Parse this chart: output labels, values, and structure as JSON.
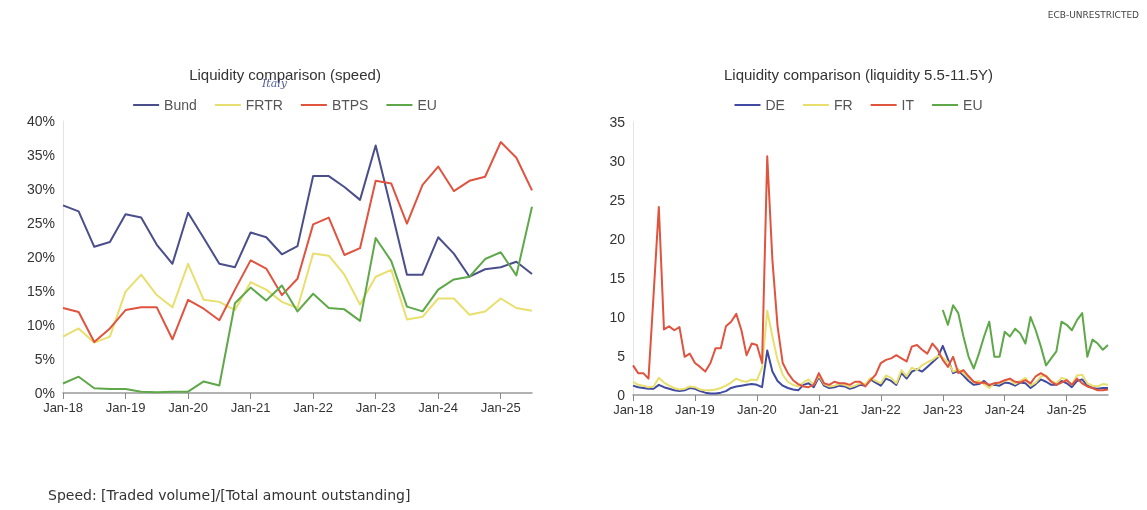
{
  "chart_data": [
    {
      "type": "line",
      "title": "Liquidity comparison (speed)",
      "categories": [
        "Jan-18",
        null,
        null,
        null,
        "Jan-19",
        null,
        null,
        null,
        "Jan-20",
        null,
        null,
        null,
        "Jan-21",
        null,
        null,
        null,
        "Jan-22",
        null,
        null,
        null,
        "Jan-23",
        null,
        null,
        null,
        "Jan-24",
        null,
        null,
        null,
        "Jan-25",
        null,
        null
      ],
      "series": [
        {
          "name": "Bund",
          "color": "#4a4e8a",
          "values": [
            27.6,
            26.7,
            21.5,
            22.2,
            26.3,
            25.8,
            21.8,
            19,
            26.5,
            22.8,
            19,
            18.5,
            23.6,
            22.9,
            20.4,
            21.6,
            31.9,
            31.9,
            30.3,
            28.4,
            36.4,
            27,
            17.4,
            17.4,
            22.9,
            20.5,
            17.1,
            18.2,
            18.5,
            19.3,
            17.5
          ]
        },
        {
          "name": "FRTR",
          "color": "#e8df6e",
          "values": [
            8.3,
            9.5,
            7.4,
            8.3,
            14.9,
            17.4,
            14.4,
            12.6,
            19,
            13.7,
            13.4,
            12.2,
            16.3,
            15.2,
            13.4,
            12.5,
            20.5,
            20.2,
            17.4,
            13,
            17.1,
            18.1,
            10.8,
            11.2,
            13.9,
            13.9,
            11.5,
            12,
            13.9,
            12.5,
            12.1
          ]
        },
        {
          "name": "BTPS",
          "color": "#e0533f",
          "values": [
            12.5,
            11.9,
            7.5,
            9.5,
            12.2,
            12.6,
            12.6,
            7.9,
            13.7,
            12.4,
            10.7,
            15.2,
            19.5,
            18.3,
            14.4,
            16.8,
            24.8,
            25.8,
            20.3,
            21.3,
            31.2,
            30.8,
            24.9,
            30.6,
            33.3,
            29.7,
            31.2,
            31.8,
            36.9,
            34.6,
            29.8
          ]
        },
        {
          "name": "EU",
          "color": "#5fa84a",
          "values": [
            1.4,
            2.4,
            0.7,
            0.6,
            0.6,
            0.2,
            0.1,
            0.2,
            0.2,
            1.7,
            1.1,
            13.2,
            15.5,
            13.6,
            15.8,
            12,
            14.6,
            12.5,
            12.3,
            10.6,
            22.8,
            19.4,
            12.7,
            12,
            15.2,
            16.7,
            17.1,
            19.7,
            20.7,
            17.3,
            27.4
          ]
        }
      ],
      "ylim": [
        0,
        40
      ],
      "yticks": [
        {
          "value": 0,
          "label": "0%"
        },
        {
          "value": 5,
          "label": "5%"
        },
        {
          "value": 10,
          "label": "10%"
        },
        {
          "value": 15,
          "label": "15%"
        },
        {
          "value": 20,
          "label": "20%"
        },
        {
          "value": 25,
          "label": "25%"
        },
        {
          "value": 30,
          "label": "30%"
        },
        {
          "value": 35,
          "label": "35%"
        },
        {
          "value": 40,
          "label": "40%"
        }
      ],
      "legend": "top",
      "grid": false,
      "marker": "none",
      "line_style": "solid",
      "annotations": [
        "Italy",
        "Speed: [Traded volume]/[Total amount outstanding]"
      ]
    },
    {
      "type": "line",
      "title": "Liquidity comparison (liquidity 5.5-11.5Y)",
      "categories": [
        "Jan-18",
        null,
        null,
        null,
        null,
        null,
        null,
        null,
        null,
        null,
        null,
        null,
        "Jan-19",
        null,
        null,
        null,
        null,
        null,
        null,
        null,
        null,
        null,
        null,
        null,
        "Jan-20",
        null,
        null,
        null,
        null,
        null,
        null,
        null,
        null,
        null,
        null,
        null,
        "Jan-21",
        null,
        null,
        null,
        null,
        null,
        null,
        null,
        null,
        null,
        null,
        null,
        "Jan-22",
        null,
        null,
        null,
        null,
        null,
        null,
        null,
        null,
        null,
        null,
        null,
        "Jan-23",
        null,
        null,
        null,
        null,
        null,
        null,
        null,
        null,
        null,
        null,
        null,
        "Jan-24",
        null,
        null,
        null,
        null,
        null,
        null,
        null,
        null,
        null,
        null,
        null,
        "Jan-25",
        null,
        null,
        null,
        null,
        null,
        null,
        null,
        null
      ],
      "series": [
        {
          "name": "DE",
          "color": "#3f4aa0",
          "values": [
            1.2,
            1.0,
            0.9,
            0.8,
            0.8,
            1.3,
            1.0,
            0.8,
            0.6,
            0.5,
            0.6,
            0.9,
            0.8,
            0.5,
            0.3,
            0.2,
            0.2,
            0.3,
            0.5,
            0.9,
            1.1,
            1.2,
            1.3,
            1.4,
            1.3,
            1.0,
            5.7,
            3.0,
            1.8,
            1.2,
            0.9,
            0.7,
            0.6,
            1.3,
            1.5,
            1.0,
            2.3,
            1.2,
            0.9,
            1.0,
            1.2,
            1.1,
            0.8,
            1.0,
            1.3,
            1.2,
            2.0,
            1.6,
            1.2,
            2.1,
            1.8,
            1.3,
            2.8,
            2.1,
            3.0,
            3.3,
            3.0,
            3.6,
            4.2,
            4.8,
            6.3,
            4.6,
            2.8,
            3.1,
            2.5,
            1.8,
            1.3,
            1.4,
            1.8,
            1.2,
            1.3,
            1.2,
            1.6,
            1.5,
            1.2,
            1.6,
            1.5,
            0.9,
            1.4,
            2.0,
            1.7,
            1.3,
            1.3,
            1.8,
            1.5,
            1.0,
            1.8,
            2.0,
            1.2,
            0.9,
            0.8,
            0.9,
            0.9
          ]
        },
        {
          "name": "FR",
          "color": "#e8df6e",
          "values": [
            1.7,
            1.3,
            1.2,
            1.0,
            1.1,
            2.2,
            1.6,
            1.2,
            0.9,
            0.7,
            0.8,
            1.1,
            1.0,
            0.7,
            0.6,
            0.6,
            0.7,
            0.9,
            1.2,
            1.6,
            2.1,
            1.8,
            1.7,
            2.0,
            1.9,
            3.5,
            10.8,
            7.5,
            4.5,
            2.6,
            1.7,
            1.3,
            1.1,
            1.6,
            2.0,
            1.3,
            2.5,
            1.4,
            1.1,
            1.2,
            1.4,
            1.3,
            1.0,
            1.2,
            1.5,
            1.4,
            2.2,
            1.8,
            1.5,
            2.5,
            2.2,
            1.5,
            3.2,
            2.4,
            3.5,
            3.2,
            3.8,
            4.2,
            4.5,
            5.0,
            4.8,
            4.2,
            3.0,
            3.3,
            2.8,
            2.2,
            1.6,
            1.8,
            1.4,
            0.9,
            1.5,
            1.5,
            1.8,
            2.0,
            1.4,
            1.8,
            2.2,
            1.2,
            1.6,
            2.4,
            2.5,
            1.8,
            1.5,
            2.2,
            2.0,
            1.3,
            2.5,
            2.6,
            1.5,
            1.2,
            1.1,
            1.4,
            1.3
          ]
        },
        {
          "name": "IT",
          "color": "#e0533f",
          "values": [
            3.8,
            2.8,
            2.8,
            2.1,
            13,
            24.1,
            8.4,
            8.8,
            8.3,
            8.7,
            4.9,
            5.3,
            4.1,
            3.6,
            3.0,
            4.1,
            6.0,
            6.0,
            8.8,
            9.4,
            10.4,
            8.3,
            5.1,
            6.6,
            6.4,
            4.1,
            30.6,
            17.3,
            8.8,
            4.1,
            2.8,
            1.9,
            1.4,
            1.1,
            1.0,
            1.3,
            2.8,
            1.5,
            1.3,
            1.7,
            1.5,
            1.5,
            1.3,
            1.7,
            1.7,
            1.1,
            1.9,
            2.6,
            4.1,
            4.5,
            4.7,
            5.1,
            4.7,
            4.3,
            6.2,
            6.4,
            5.8,
            5.3,
            6.6,
            5.8,
            4.5,
            3.6,
            4.9,
            2.8,
            3.2,
            2.4,
            1.7,
            1.5,
            1.6,
            1.3,
            1.5,
            1.6,
            1.9,
            2.1,
            1.7,
            1.6,
            1.9,
            1.5,
            2.4,
            2.8,
            2.4,
            1.7,
            1.3,
            1.6,
            1.9,
            1.3,
            2.1,
            1.5,
            1.1,
            0.9,
            0.6,
            0.6,
            0.7
          ]
        },
        {
          "name": "EU",
          "color": "#5fa84a",
          "values": [
            null,
            null,
            null,
            null,
            null,
            null,
            null,
            null,
            null,
            null,
            null,
            null,
            null,
            null,
            null,
            null,
            null,
            null,
            null,
            null,
            null,
            null,
            null,
            null,
            null,
            null,
            null,
            null,
            null,
            null,
            null,
            null,
            null,
            null,
            null,
            null,
            null,
            null,
            null,
            null,
            null,
            null,
            null,
            null,
            null,
            null,
            null,
            null,
            null,
            null,
            null,
            null,
            null,
            null,
            null,
            null,
            null,
            null,
            null,
            null,
            10.9,
            9,
            11.5,
            10.5,
            7.5,
            4.9,
            3.4,
            5.3,
            7.5,
            9.4,
            4.9,
            4.9,
            8.1,
            7.5,
            8.5,
            7.9,
            6.6,
            10,
            8.3,
            6.2,
            3.8,
            4.7,
            5.6,
            9.4,
            9,
            8.3,
            9.6,
            10.5,
            4.9,
            7.1,
            6.6,
            5.8,
            6.4
          ]
        }
      ],
      "ylim": [
        0,
        35
      ],
      "yticks": [
        0,
        5,
        10,
        15,
        20,
        25,
        30,
        35
      ],
      "legend": "top",
      "grid": false,
      "marker": "none",
      "line_style": "solid",
      "annotations": [
        "ECB-UNRESTRICTED"
      ]
    }
  ]
}
